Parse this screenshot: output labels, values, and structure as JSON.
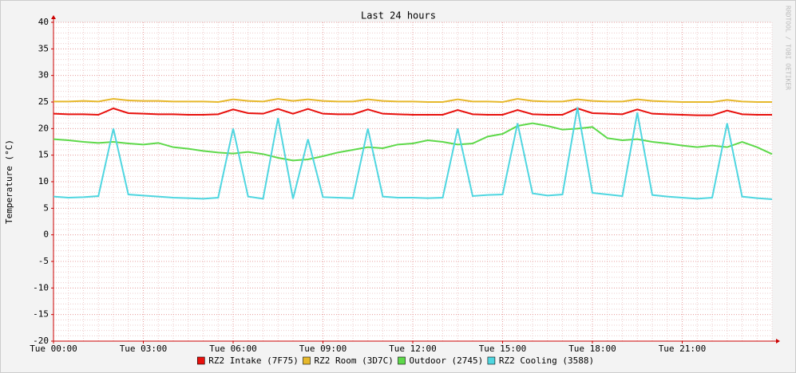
{
  "chart_data": {
    "type": "line",
    "title": "Last 24 hours",
    "y_label": "Temperature (°C)",
    "watermark": "RRDTOOL / TOBI OETIKER",
    "x": [
      0,
      0.5,
      1,
      1.5,
      2,
      2.5,
      3,
      3.5,
      4,
      4.5,
      5,
      5.5,
      6,
      6.5,
      7,
      7.5,
      8,
      8.5,
      9,
      9.5,
      10,
      10.5,
      11,
      11.5,
      12,
      12.5,
      13,
      13.5,
      14,
      14.5,
      15,
      15.5,
      16,
      16.5,
      17,
      17.5,
      18,
      18.5,
      19,
      19.5,
      20,
      20.5,
      21,
      21.5,
      22,
      22.5,
      23,
      23.5,
      24
    ],
    "xlim": [
      0,
      24
    ],
    "xticks": [
      {
        "value": 0,
        "label": "Tue 00:00"
      },
      {
        "value": 3,
        "label": "Tue 03:00"
      },
      {
        "value": 6,
        "label": "Tue 06:00"
      },
      {
        "value": 9,
        "label": "Tue 09:00"
      },
      {
        "value": 12,
        "label": "Tue 12:00"
      },
      {
        "value": 15,
        "label": "Tue 15:00"
      },
      {
        "value": 18,
        "label": "Tue 18:00"
      },
      {
        "value": 21,
        "label": "Tue 21:00"
      }
    ],
    "ylim": [
      -20,
      40
    ],
    "yticks": [
      -20,
      -15,
      -10,
      -5,
      0,
      5,
      10,
      15,
      20,
      25,
      30,
      35,
      40
    ],
    "grid": true,
    "series": [
      {
        "name": "RZ2 Intake (7F75)",
        "color": "#e8100c",
        "values": [
          22.8,
          22.7,
          22.7,
          22.6,
          23.8,
          22.9,
          22.8,
          22.7,
          22.7,
          22.6,
          22.6,
          22.7,
          23.6,
          22.9,
          22.8,
          23.7,
          22.8,
          23.7,
          22.8,
          22.7,
          22.7,
          23.6,
          22.8,
          22.7,
          22.6,
          22.6,
          22.6,
          23.5,
          22.7,
          22.6,
          22.6,
          23.5,
          22.7,
          22.6,
          22.6,
          23.8,
          22.9,
          22.8,
          22.7,
          23.6,
          22.8,
          22.7,
          22.6,
          22.5,
          22.5,
          23.4,
          22.7,
          22.6,
          22.6
        ]
      },
      {
        "name": "RZ2 Room (3D7C)",
        "color": "#e6b82a",
        "values": [
          25.1,
          25.1,
          25.2,
          25.1,
          25.6,
          25.3,
          25.2,
          25.2,
          25.1,
          25.1,
          25.1,
          25.0,
          25.5,
          25.2,
          25.1,
          25.6,
          25.2,
          25.5,
          25.2,
          25.1,
          25.1,
          25.5,
          25.2,
          25.1,
          25.1,
          25.0,
          25.0,
          25.5,
          25.1,
          25.1,
          25.0,
          25.6,
          25.2,
          25.1,
          25.1,
          25.5,
          25.2,
          25.1,
          25.1,
          25.5,
          25.2,
          25.1,
          25.0,
          25.0,
          25.0,
          25.4,
          25.1,
          25.0,
          25.0
        ]
      },
      {
        "name": "Outdoor (2745)",
        "color": "#5ed94a",
        "values": [
          18,
          17.8,
          17.5,
          17.3,
          17.5,
          17.2,
          17,
          17.3,
          16.5,
          16.2,
          15.8,
          15.5,
          15.3,
          15.6,
          15.2,
          14.5,
          14,
          14.2,
          14.8,
          15.5,
          16,
          16.5,
          16.3,
          17,
          17.2,
          17.8,
          17.5,
          17,
          17.2,
          18.5,
          19,
          20.5,
          21,
          20.5,
          19.8,
          20,
          20.3,
          18.2,
          17.8,
          18,
          17.5,
          17.2,
          16.8,
          16.5,
          16.8,
          16.5,
          17.5,
          16.5,
          15.2
        ]
      },
      {
        "name": "RZ2 Cooling (3588)",
        "color": "#4fd6e0",
        "values": [
          7.2,
          7.0,
          7.1,
          7.3,
          20,
          7.6,
          7.4,
          7.2,
          7.0,
          6.9,
          6.8,
          7.0,
          20,
          7.2,
          6.8,
          22,
          6.8,
          18,
          7.1,
          7.0,
          6.9,
          20,
          7.2,
          7.0,
          7.0,
          6.9,
          7.0,
          20,
          7.3,
          7.5,
          7.6,
          21,
          7.8,
          7.4,
          7.6,
          24,
          7.9,
          7.6,
          7.3,
          23,
          7.5,
          7.2,
          7.0,
          6.8,
          7.0,
          21,
          7.2,
          6.9,
          6.7
        ]
      }
    ]
  }
}
